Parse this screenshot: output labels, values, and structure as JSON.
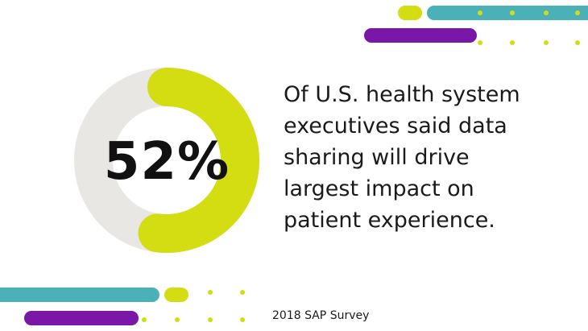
{
  "stat": {
    "percent_value": 52,
    "percent_label": "52%",
    "description_lines": [
      "Of U.S. health system",
      "executives said data",
      "sharing will drive",
      "largest impact on",
      "patient experience."
    ]
  },
  "source": "2018 SAP Survey",
  "colors": {
    "accent_lime": "#d4dc12",
    "ring_track": "#e9e7e3",
    "teal": "#4bb1b8",
    "purple": "#7a16a8",
    "text": "#111111"
  }
}
